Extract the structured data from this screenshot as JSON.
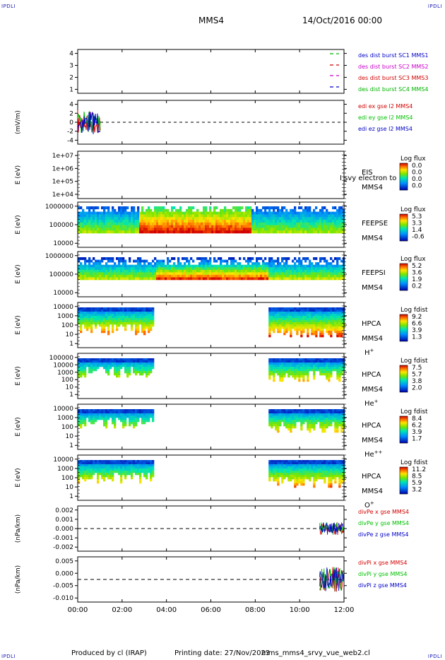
{
  "header": {
    "corner_tl": "IPDLI",
    "corner_tr": "IPDLI",
    "corner_bl": "IPDLI",
    "corner_br": "IPDLI",
    "spacecraft": "MMS4",
    "date": "14/Oct/2016 00:00"
  },
  "footer": {
    "produced": "Produced by cl (IRAP)",
    "printing": "Printing date: 27/Nov/2023",
    "file": "mms_mms4_srvy_vue_web2.cl"
  },
  "colors": {
    "mms1": "#00b400",
    "mms2": "#d20000",
    "mms3": "#c800c8",
    "mms4": "#0000c8",
    "red": "#d20000",
    "green": "#00c000",
    "blue": "#0000c8"
  },
  "chart_data": {
    "type": "line",
    "x_ticks": [
      "00:00",
      "02:00",
      "04:00",
      "06:00",
      "08:00",
      "10:00",
      "12:00"
    ],
    "x_range_hours": [
      0,
      12
    ],
    "panels": [
      {
        "id": "burst",
        "ylabel": "",
        "y_ticks": [
          "4",
          "3",
          "2",
          "1"
        ],
        "legend": [
          {
            "text": "des dist burst SC1 MMS1",
            "color": "#0000c8"
          },
          {
            "text": "des dist burst SC2 MMS2",
            "color": "#c800c8"
          },
          {
            "text": "des dist burst SC3 MMS3",
            "color": "#d20000"
          },
          {
            "text": "des dist burst SC4 MMS4",
            "color": "#00b400"
          }
        ]
      },
      {
        "id": "edi",
        "ylabel": "(mV/m)",
        "y_ticks": [
          "4",
          "2",
          "0",
          "-2",
          "-4"
        ],
        "legend": [
          {
            "text": "edi ex gse l2 MMS4",
            "color": "#d20000"
          },
          {
            "text": "edi ey gse l2 MMS4",
            "color": "#00c000"
          },
          {
            "text": "edi ez gse l2 MMS4",
            "color": "#0000c8"
          }
        ],
        "data_span_hours": [
          0.0,
          1.05
        ]
      },
      {
        "id": "eis",
        "ylabel": "E (eV)",
        "y_ticks": [
          "1e+07",
          "1e+06",
          "1e+05",
          "1e+04"
        ],
        "label_lines": [
          "EIS",
          "MMS4"
        ],
        "overlay": "I svy electron to",
        "cbar_title": "Log flux",
        "cbar_ticks": [
          "0.0",
          "0.0",
          "0.0",
          "0.0"
        ]
      },
      {
        "id": "feepse",
        "ylabel": "E (eV)",
        "y_ticks": [
          "1000000",
          "100000",
          "10000"
        ],
        "label_lines": [
          "FEEPSE",
          "MMS4"
        ],
        "cbar_title": "Log flux",
        "cbar_ticks": [
          "5.3",
          "3.3",
          "1.4",
          "-0.6"
        ]
      },
      {
        "id": "feepsi",
        "ylabel": "E (eV)",
        "y_ticks": [
          "1000000",
          "100000",
          "10000"
        ],
        "label_lines": [
          "FEEPSI",
          "MMS4"
        ],
        "cbar_title": "Log flux",
        "cbar_ticks": [
          "5.2",
          "3.6",
          "1.9",
          "0.2"
        ]
      },
      {
        "id": "hpca-h",
        "ylabel": "E (eV)",
        "y_ticks": [
          "10000",
          "1000",
          "100",
          "10",
          "1"
        ],
        "label_lines": [
          "HPCA",
          "MMS4"
        ],
        "species": "H",
        "species_sup": "+",
        "cbar_title": "Log fdist",
        "cbar_ticks": [
          "9.2",
          "6.6",
          "3.9",
          "1.3"
        ],
        "data_spans_hours": [
          [
            0.0,
            3.35
          ],
          [
            8.6,
            12.0
          ]
        ]
      },
      {
        "id": "hpca-he",
        "ylabel": "E (eV)",
        "y_ticks": [
          "100000",
          "10000",
          "1000",
          "100",
          "10",
          "1"
        ],
        "label_lines": [
          "HPCA",
          "MMS4"
        ],
        "species": "He",
        "species_sup": "+",
        "cbar_title": "Log fdist",
        "cbar_ticks": [
          "7.5",
          "5.7",
          "3.8",
          "2.0"
        ],
        "data_spans_hours": [
          [
            0.0,
            3.35
          ],
          [
            8.6,
            12.0
          ]
        ]
      },
      {
        "id": "hpca-he2",
        "ylabel": "E (eV)",
        "y_ticks": [
          "10000",
          "1000",
          "100",
          "10",
          "1"
        ],
        "label_lines": [
          "HPCA",
          "MMS4"
        ],
        "species": "He",
        "species_sup": "++",
        "cbar_title": "Log fdist",
        "cbar_ticks": [
          "8.4",
          "6.2",
          "3.9",
          "1.7"
        ],
        "data_spans_hours": [
          [
            0.0,
            3.35
          ],
          [
            8.6,
            12.0
          ]
        ]
      },
      {
        "id": "hpca-o",
        "ylabel": "E (eV)",
        "y_ticks": [
          "10000",
          "1000",
          "100",
          "10",
          "1"
        ],
        "label_lines": [
          "HPCA",
          "MMS4"
        ],
        "species": "O",
        "species_sup": "+",
        "cbar_title": "Log fdist",
        "cbar_ticks": [
          "11.2",
          "8.5",
          "5.9",
          "3.2"
        ],
        "data_spans_hours": [
          [
            0.0,
            3.35
          ],
          [
            8.6,
            12.0
          ]
        ]
      },
      {
        "id": "divpe",
        "ylabel": "(nPa/km)",
        "y_ticks": [
          "0.002",
          "0.001",
          "0.000",
          "-0.001",
          "-0.002"
        ],
        "legend": [
          {
            "text": "divPe x gse MMS4",
            "color": "#d20000"
          },
          {
            "text": "divPe y gse MMS4",
            "color": "#00c000"
          },
          {
            "text": "divPe z gse MMS4",
            "color": "#0000c8"
          }
        ],
        "data_span_hours": [
          10.9,
          12.0
        ]
      },
      {
        "id": "divpi",
        "ylabel": "(nPa/km)",
        "y_ticks": [
          "0.005",
          "0.000",
          "-0.005",
          "-0.010"
        ],
        "legend": [
          {
            "text": "divPi x gse MMS4",
            "color": "#d20000"
          },
          {
            "text": "divPi y gse MMS4",
            "color": "#00c000"
          },
          {
            "text": "divPi z gse MMS4",
            "color": "#0000c8"
          }
        ],
        "data_span_hours": [
          10.9,
          12.0
        ]
      }
    ]
  }
}
